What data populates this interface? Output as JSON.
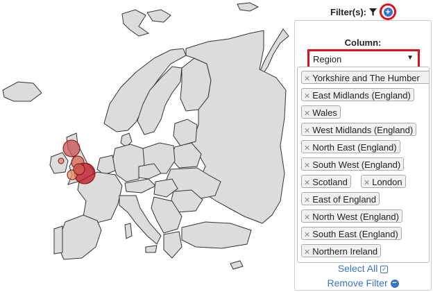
{
  "filters": {
    "label": "Filter(s):",
    "add_icon": "plus-circle-icon",
    "filter_icon": "funnel-icon"
  },
  "panel": {
    "column_label": "Column:",
    "column_value": "Region",
    "values": [
      "Yorkshire and The Humber",
      "East Midlands (England)",
      "Wales",
      "West Midlands (England)",
      "North East (England)",
      "South West (England)",
      "Scotland",
      "London",
      "East of England",
      "North West (England)",
      "South East (England)",
      "Northern Ireland"
    ],
    "select_all": "Select All",
    "remove_filter": "Remove Filter"
  },
  "colors": {
    "accent": "#3a74c4",
    "highlight": "#e0101a",
    "land": "#dcdcdc"
  }
}
